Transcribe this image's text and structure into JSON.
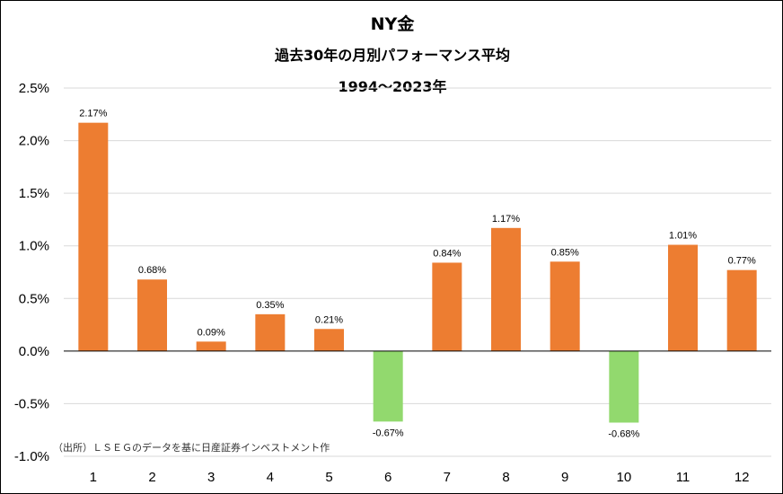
{
  "chart_data": {
    "type": "bar",
    "title": "NY金",
    "subtitle": "過去30年の月別パフォーマンス平均",
    "period": "1994～2023年",
    "categories": [
      "1",
      "2",
      "3",
      "4",
      "5",
      "6",
      "7",
      "8",
      "9",
      "10",
      "11",
      "12"
    ],
    "values": [
      2.17,
      0.68,
      0.09,
      0.35,
      0.21,
      -0.67,
      0.84,
      1.17,
      0.85,
      -0.68,
      1.01,
      0.77
    ],
    "value_labels": [
      "2.17%",
      "0.68%",
      "0.09%",
      "0.35%",
      "0.21%",
      "-0.67%",
      "0.84%",
      "1.17%",
      "0.85%",
      "-0.68%",
      "1.01%",
      "0.77%"
    ],
    "y_ticks": [
      2.5,
      2.0,
      1.5,
      1.0,
      0.5,
      0.0,
      -0.5,
      -1.0
    ],
    "y_tick_labels": [
      "2.5%",
      "2.0%",
      "1.5%",
      "1.0%",
      "0.5%",
      "0.0%",
      "-0.5%",
      "-1.0%"
    ],
    "ylim": [
      -1.0,
      2.5
    ],
    "xlabel": "",
    "ylabel": "",
    "grid": true,
    "colors": {
      "positive": "#ED7D31",
      "negative": "#92D96E",
      "grid": "#D9D9D9",
      "axis": "#000000"
    },
    "source_note": "（出所）ＬＳＥＧのデータを基に日産証券インベストメント作"
  }
}
